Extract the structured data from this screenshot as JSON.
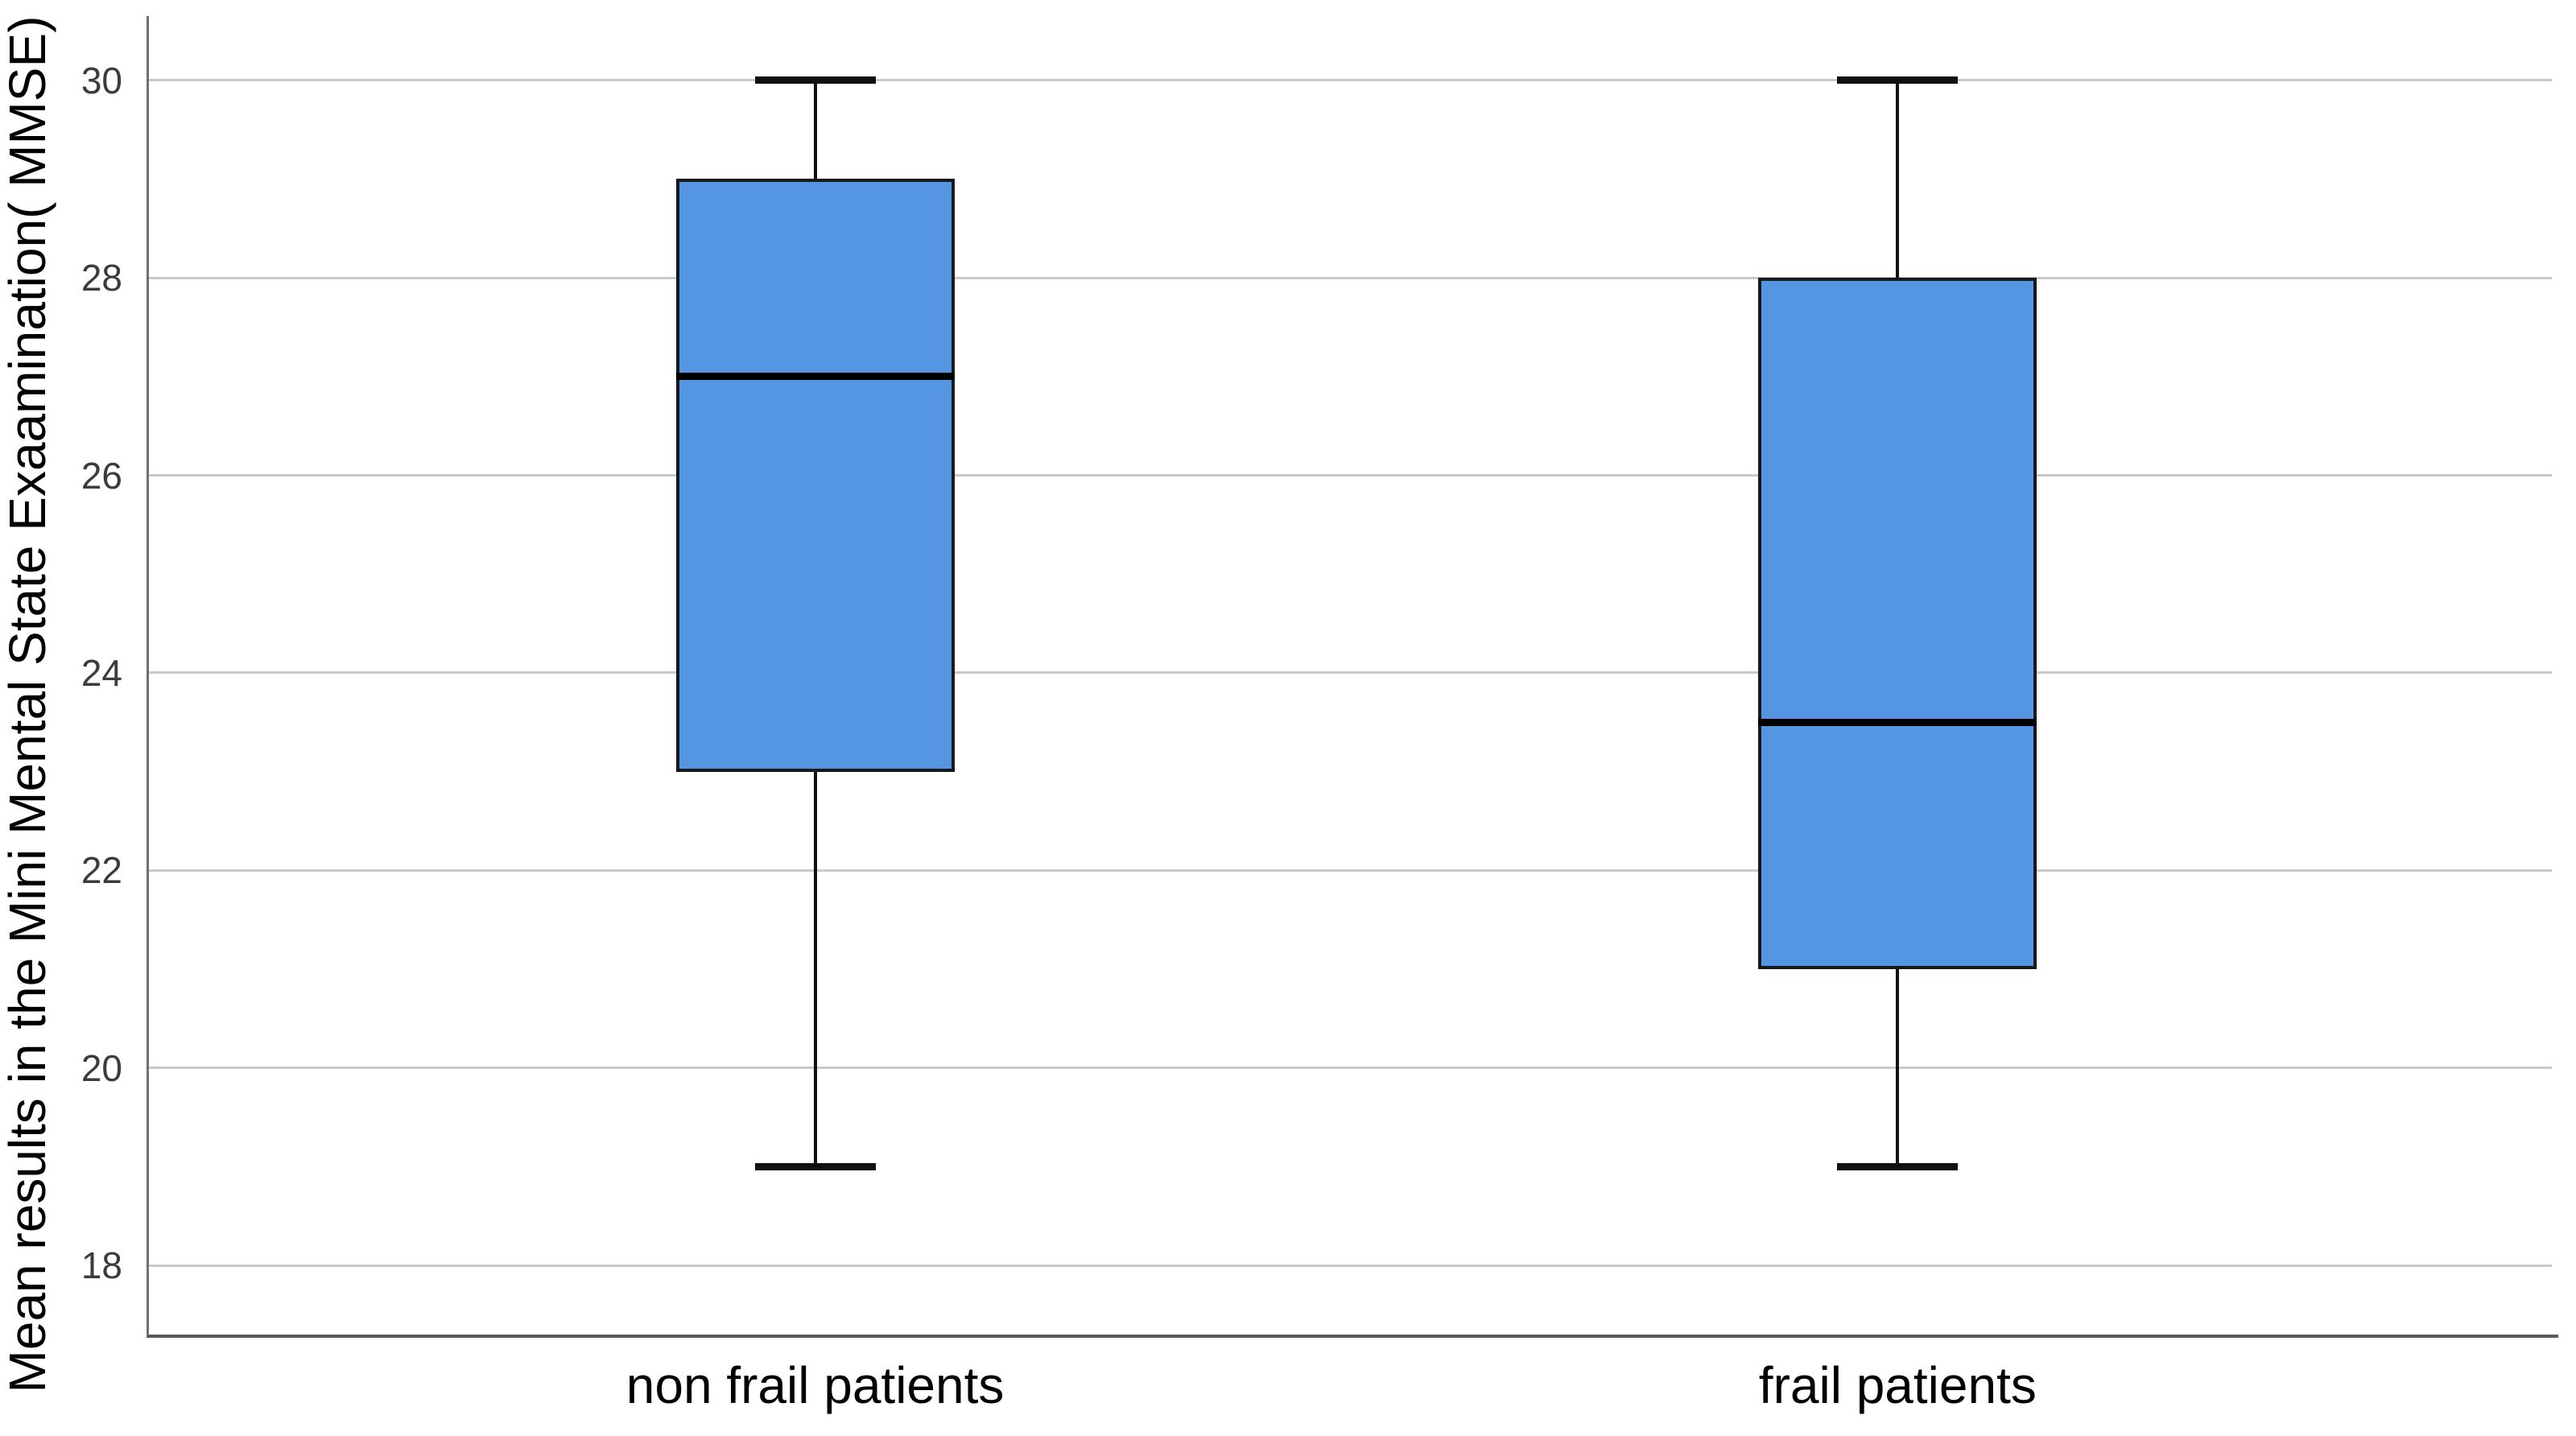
{
  "chart_data": {
    "type": "boxplot",
    "title": "",
    "xlabel": "",
    "ylabel": "Mean results in the Mini Mental State Exaamination( MMSE)",
    "categories": [
      "non frail patients",
      "frail patients"
    ],
    "yticks": [
      18,
      20,
      22,
      24,
      26,
      28,
      30
    ],
    "ylim": [
      17.3,
      30.65
    ],
    "grid": "horizontal",
    "legend": "none",
    "series": [
      {
        "category": "non frail patients",
        "whisker_low": 19,
        "q1": 23,
        "median": 27,
        "q3": 29,
        "whisker_high": 30
      },
      {
        "category": "frail patients",
        "whisker_low": 19,
        "q1": 21,
        "median": 23.5,
        "q3": 28,
        "whisker_high": 30
      }
    ],
    "colors": {
      "box_fill": "#5596e3",
      "box_border": "#15191d",
      "median_line": "#000000",
      "whisker": "#111111",
      "gridline": "#c9c9c9",
      "axis_line": "#6f6f6f",
      "tick_label": "#3c3c3c"
    }
  }
}
